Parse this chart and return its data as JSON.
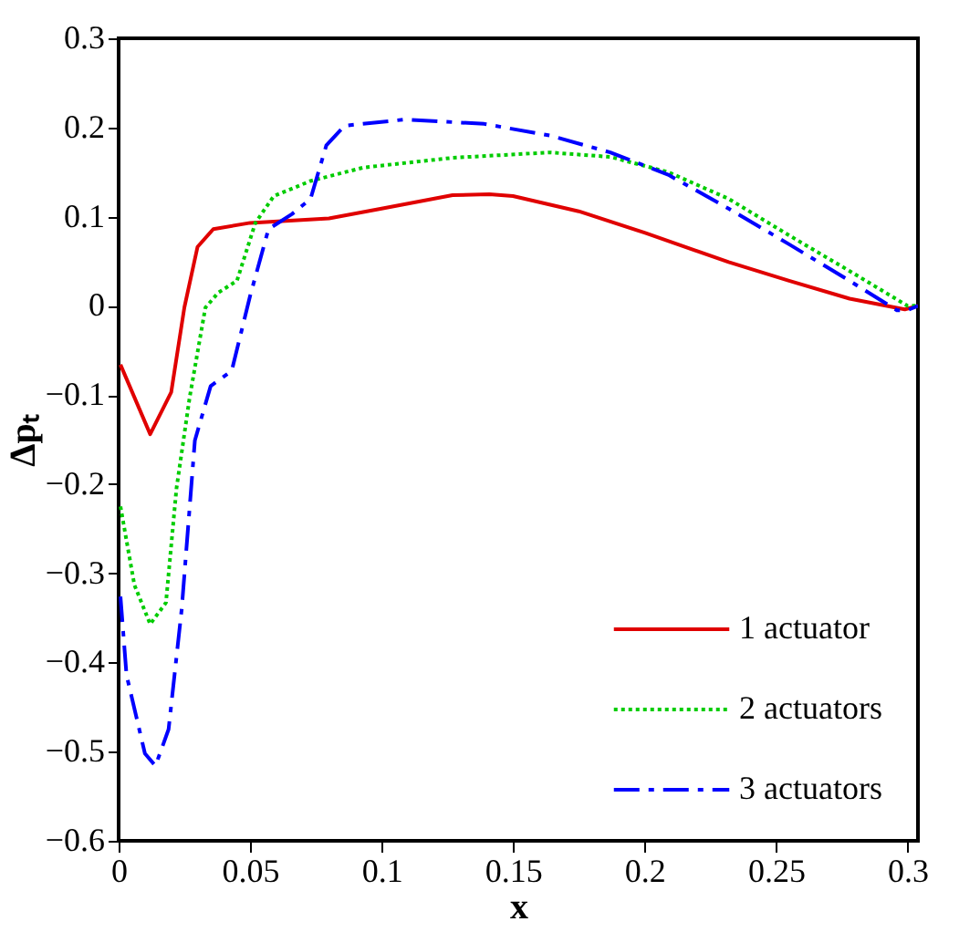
{
  "chart_data": {
    "type": "line",
    "xlabel": "x",
    "ylabel": "Δpₜ",
    "xlim": [
      0,
      0.304
    ],
    "ylim": [
      -0.6,
      0.3
    ],
    "xticks": [
      {
        "value": 0,
        "label": "0"
      },
      0.05,
      0.1,
      0.15,
      0.2,
      0.25,
      0.3
    ],
    "yticks": [
      -0.6,
      -0.5,
      -0.4,
      -0.3,
      -0.2,
      -0.1,
      {
        "value": 0,
        "label": "0"
      },
      0.1,
      0.2,
      0.3
    ],
    "grid": false,
    "legend": "bottom right",
    "marker": "none",
    "series": [
      {
        "name": "1 actuator",
        "color": "#e00000",
        "line_style": "solid",
        "x": [
          0.0007,
          0.012,
          0.02,
          0.025,
          0.03,
          0.036,
          0.05,
          0.08,
          0.1,
          0.127,
          0.141,
          0.15,
          0.175,
          0.2,
          0.232,
          0.255,
          0.278,
          0.299,
          0.304
        ],
        "values": [
          -0.066,
          -0.144,
          -0.097,
          -0.002,
          0.066,
          0.086,
          0.093,
          0.098,
          0.109,
          0.124,
          0.125,
          0.123,
          0.106,
          0.082,
          0.049,
          0.028,
          0.008,
          -0.004,
          0
        ]
      },
      {
        "name": "2 actuators",
        "color": "#00cc00",
        "line_style": "dotted",
        "x": [
          0.0007,
          0.006,
          0.012,
          0.018,
          0.022,
          0.027,
          0.033,
          0.038,
          0.045,
          0.052,
          0.059,
          0.073,
          0.093,
          0.127,
          0.164,
          0.187,
          0.209,
          0.232,
          0.255,
          0.278,
          0.3,
          0.304
        ],
        "values": [
          -0.225,
          -0.313,
          -0.357,
          -0.333,
          -0.205,
          -0.103,
          -0.002,
          0.015,
          0.028,
          0.093,
          0.123,
          0.14,
          0.155,
          0.166,
          0.172,
          0.167,
          0.15,
          0.12,
          0.079,
          0.039,
          0,
          0
        ]
      },
      {
        "name": "3 actuators",
        "color": "#0000ff",
        "line_style": "dashed",
        "x": [
          0.0007,
          0.003,
          0.01,
          0.014,
          0.019,
          0.024,
          0.029,
          0.035,
          0.043,
          0.05,
          0.057,
          0.066,
          0.073,
          0.079,
          0.086,
          0.109,
          0.139,
          0.164,
          0.187,
          0.209,
          0.232,
          0.255,
          0.278,
          0.296,
          0.3,
          0.304
        ],
        "values": [
          -0.326,
          -0.414,
          -0.502,
          -0.516,
          -0.475,
          -0.34,
          -0.151,
          -0.09,
          -0.073,
          0.011,
          0.086,
          0.103,
          0.12,
          0.18,
          0.202,
          0.209,
          0.204,
          0.191,
          0.172,
          0.147,
          0.109,
          0.069,
          0.028,
          -0.005,
          -0.005,
          0
        ]
      }
    ]
  }
}
